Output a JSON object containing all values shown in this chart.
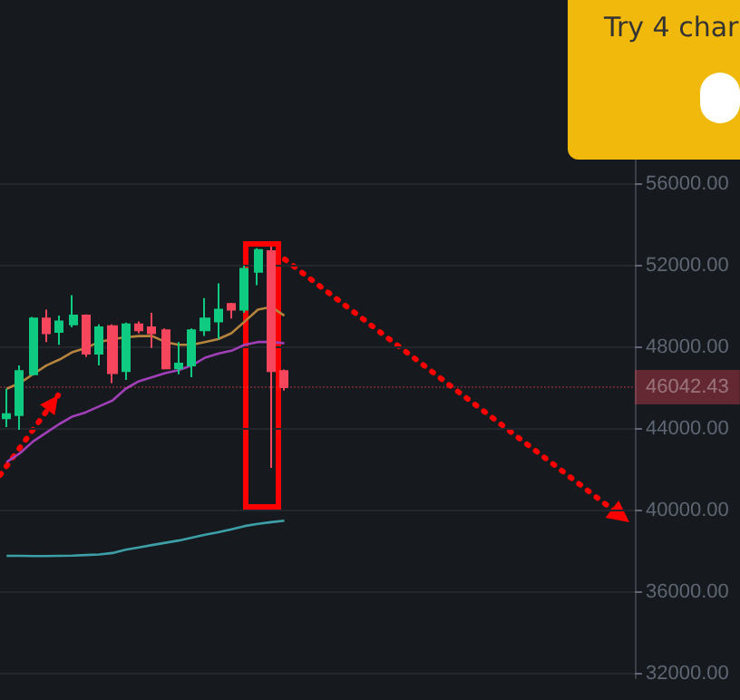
{
  "chart_data": {
    "type": "candlestick",
    "categories": [
      null,
      null,
      null,
      null,
      null,
      null,
      null,
      null,
      null,
      null,
      null,
      null,
      null,
      null,
      null,
      null,
      null,
      null,
      null,
      null,
      null,
      null,
      null,
      null,
      null,
      null,
      null,
      null,
      null,
      null,
      null,
      null,
      null,
      null,
      null,
      null,
      null,
      null,
      null,
      null,
      null,
      null,
      null,
      null,
      null,
      null,
      null,
      null
    ],
    "ohlc": [
      [
        44530,
        45970,
        44100,
        44730
      ],
      [
        44680,
        47110,
        43960,
        46830
      ],
      [
        46680,
        49490,
        46630,
        49410
      ],
      [
        49410,
        49840,
        48260,
        48690
      ],
      [
        48750,
        49550,
        48120,
        49260
      ],
      [
        49120,
        50550,
        48980,
        49550
      ],
      [
        49550,
        49610,
        47540,
        47690
      ],
      [
        47690,
        49120,
        47110,
        48980
      ],
      [
        49030,
        49120,
        46250,
        46740
      ],
      [
        46830,
        49210,
        46400,
        49120
      ],
      [
        49120,
        49260,
        48690,
        48830
      ],
      [
        48980,
        49690,
        47970,
        48690
      ],
      [
        48830,
        48920,
        46910,
        46970
      ],
      [
        46970,
        48260,
        46680,
        47200
      ],
      [
        47110,
        48920,
        46540,
        48830
      ],
      [
        48830,
        50410,
        48550,
        49410
      ],
      [
        49260,
        51130,
        48400,
        49840
      ],
      [
        50120,
        50180,
        49410,
        49840
      ],
      [
        49840,
        51990,
        49690,
        51840
      ],
      [
        51700,
        52850,
        51040,
        52760
      ],
      [
        52700,
        52930,
        42100,
        46830
      ],
      [
        46830,
        46910,
        45880,
        46042.43
      ],
      null,
      null,
      null,
      null,
      null,
      null,
      null,
      null,
      null,
      null,
      null,
      null,
      null,
      null,
      null,
      null,
      null,
      null,
      null,
      null,
      null,
      null,
      null,
      null,
      null,
      null
    ],
    "series": [
      {
        "type": "line",
        "color": "#b5843d",
        "values": [
          45970,
          46250,
          46680,
          47110,
          47400,
          47770,
          47970,
          48260,
          48400,
          48490,
          48550,
          48550,
          48260,
          48120,
          48120,
          48260,
          48400,
          48690,
          49260,
          49840,
          49980,
          49550,
          null,
          null,
          null,
          null,
          null,
          null,
          null,
          null,
          null,
          null,
          null,
          null,
          null,
          null,
          null,
          null,
          null,
          null,
          null,
          null,
          null,
          null,
          null,
          null,
          null,
          null
        ]
      },
      {
        "type": "line",
        "color": "#a13fb8",
        "values": [
          42380,
          42810,
          43390,
          43820,
          44250,
          44620,
          44820,
          45110,
          45390,
          45970,
          46340,
          46540,
          46740,
          46880,
          47110,
          47490,
          47690,
          47830,
          48120,
          48260,
          48260,
          48200,
          null,
          null,
          null,
          null,
          null,
          null,
          null,
          null,
          null,
          null,
          null,
          null,
          null,
          null,
          null,
          null,
          null,
          null,
          null,
          null,
          null,
          null,
          null,
          null,
          null,
          null
        ]
      },
      {
        "type": "line",
        "color": "#3d9fa8",
        "values": [
          37790,
          37790,
          37780,
          37780,
          37790,
          37800,
          37830,
          37860,
          37930,
          38090,
          38200,
          38320,
          38430,
          38540,
          38680,
          38820,
          38950,
          39090,
          39250,
          39360,
          39440,
          39510,
          null,
          null,
          null,
          null,
          null,
          null,
          null,
          null,
          null,
          null,
          null,
          null,
          null,
          null,
          null,
          null,
          null,
          null,
          null,
          null,
          null,
          null,
          null,
          null,
          null,
          null
        ]
      }
    ],
    "ylim": [
      31800,
      65000
    ],
    "yticks": [
      {
        "value": 32000,
        "label": "32000.00"
      },
      {
        "value": 36000,
        "label": "36000.00"
      },
      {
        "value": 40000,
        "label": "40000.00"
      },
      {
        "value": 44000,
        "label": "44000.00"
      },
      {
        "value": 48000,
        "label": "48000.00"
      },
      {
        "value": 52000,
        "label": "52000.00"
      },
      {
        "value": 56000,
        "label": "56000.00"
      }
    ],
    "ref_lines": [
      {
        "axis": "y",
        "value": 46042.43,
        "label": "46042.43",
        "color": "#f6465d"
      }
    ],
    "annotations": [
      "Try 4 char"
    ],
    "grid": "y",
    "tick_labels": "y"
  }
}
